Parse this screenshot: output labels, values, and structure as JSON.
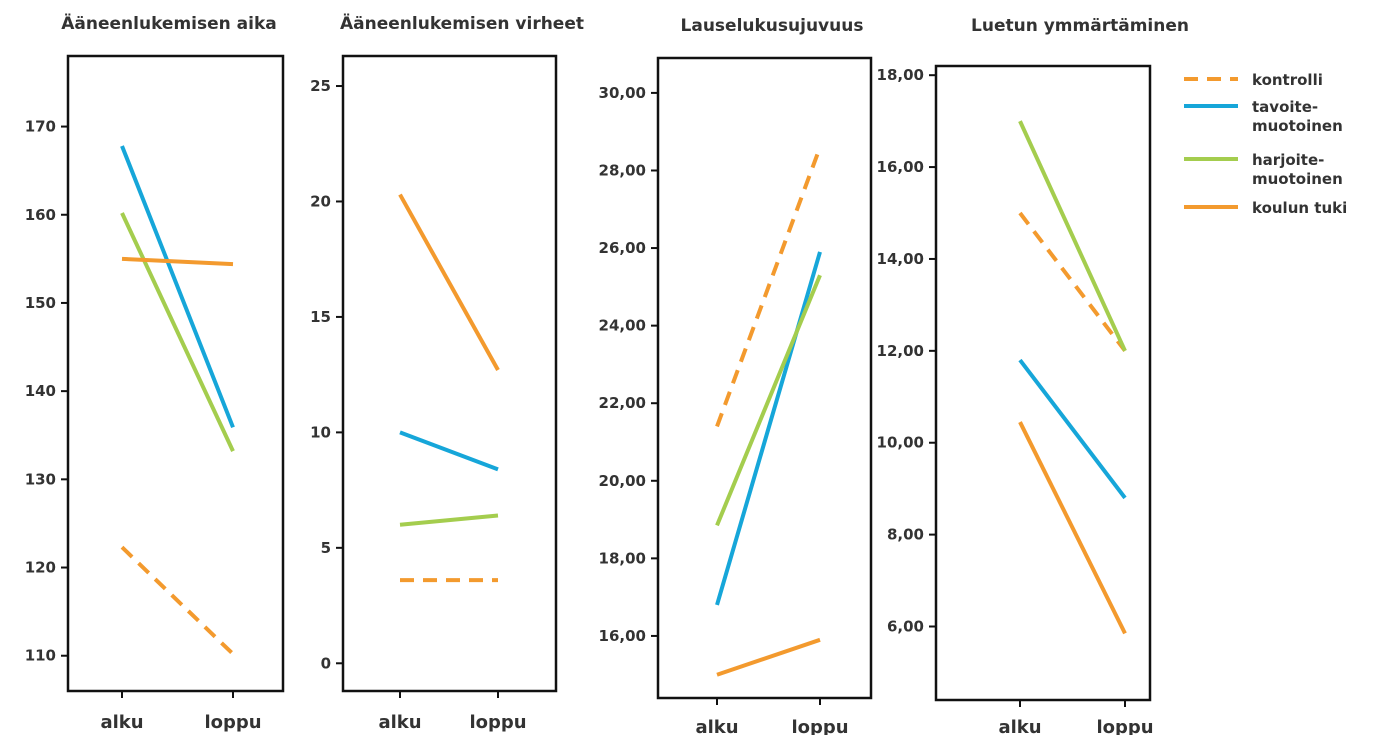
{
  "chart_data": [
    {
      "type": "line",
      "title": "Ääneenlukemisen aika",
      "categories": [
        "alku",
        "loppu"
      ],
      "ylim": [
        106,
        178
      ],
      "yticks": [
        "110",
        "120",
        "130",
        "140",
        "150",
        "160",
        "170"
      ],
      "series": [
        {
          "name": "kontrolli",
          "values": [
            122.3,
            110.2
          ]
        },
        {
          "name": "tavoite-muotoinen",
          "values": [
            167.8,
            135.9
          ]
        },
        {
          "name": "harjoite-muotoinen",
          "values": [
            160.2,
            133.2
          ]
        },
        {
          "name": "koulun tuki",
          "values": [
            155.0,
            154.4
          ]
        }
      ]
    },
    {
      "type": "line",
      "title": "Ääneenlukemisen virheet",
      "categories": [
        "alku",
        "loppu"
      ],
      "ylim": [
        -1.2,
        26.3
      ],
      "yticks": [
        "0",
        "5",
        "10",
        "15",
        "20",
        "25"
      ],
      "series": [
        {
          "name": "kontrolli",
          "values": [
            3.6,
            3.6
          ]
        },
        {
          "name": "tavoite-muotoinen",
          "values": [
            10.0,
            8.4
          ]
        },
        {
          "name": "harjoite-muotoinen",
          "values": [
            6.0,
            6.4
          ]
        },
        {
          "name": "koulun tuki",
          "values": [
            20.3,
            12.7
          ]
        }
      ]
    },
    {
      "type": "line",
      "title": "Lauselukusujuvuus",
      "categories": [
        "alku",
        "loppu"
      ],
      "ylim": [
        14.4,
        30.9
      ],
      "yticks": [
        "16,00",
        "18,00",
        "20,00",
        "22,00",
        "24,00",
        "26,00",
        "28,00",
        "30,00"
      ],
      "series": [
        {
          "name": "kontrolli",
          "values": [
            21.4,
            28.6
          ]
        },
        {
          "name": "tavoite-muotoinen",
          "values": [
            16.8,
            25.9
          ]
        },
        {
          "name": "harjoite-muotoinen",
          "values": [
            18.85,
            25.3
          ]
        },
        {
          "name": "koulun tuki",
          "values": [
            15.0,
            15.9
          ]
        }
      ]
    },
    {
      "type": "line",
      "title": "Luetun ymmärtäminen",
      "categories": [
        "alku",
        "loppu"
      ],
      "ylim": [
        4.4,
        18.2
      ],
      "yticks": [
        "6,00",
        "8,00",
        "10,00",
        "12,00",
        "14,00",
        "16,00",
        "18,00"
      ],
      "series": [
        {
          "name": "kontrolli",
          "values": [
            15.0,
            12.0
          ]
        },
        {
          "name": "tavoite-muotoinen",
          "values": [
            11.8,
            8.8
          ]
        },
        {
          "name": "harjoite-muotoinen",
          "values": [
            17.0,
            12.0
          ]
        },
        {
          "name": "koulun tuki",
          "values": [
            10.45,
            5.85
          ]
        }
      ]
    }
  ],
  "legend": {
    "position": "top-right",
    "items": [
      {
        "lines": [
          "kontrolli"
        ],
        "color": "#F39A2E",
        "dashed": true
      },
      {
        "lines": [
          "tavoite-",
          "muotoinen"
        ],
        "color": "#16A6D9",
        "dashed": false
      },
      {
        "lines": [
          "harjoite-",
          "muotoinen"
        ],
        "color": "#A4CD4E",
        "dashed": false
      },
      {
        "lines": [
          "koulun tuki"
        ],
        "color": "#F39A2E",
        "dashed": false
      }
    ]
  },
  "colors": {
    "kontrolli": "#F39A2E",
    "tavoite-muotoinen": "#16A6D9",
    "harjoite-muotoinen": "#A4CD4E",
    "koulun tuki": "#F39A2E",
    "axis": "#111111",
    "text": "#333333"
  }
}
